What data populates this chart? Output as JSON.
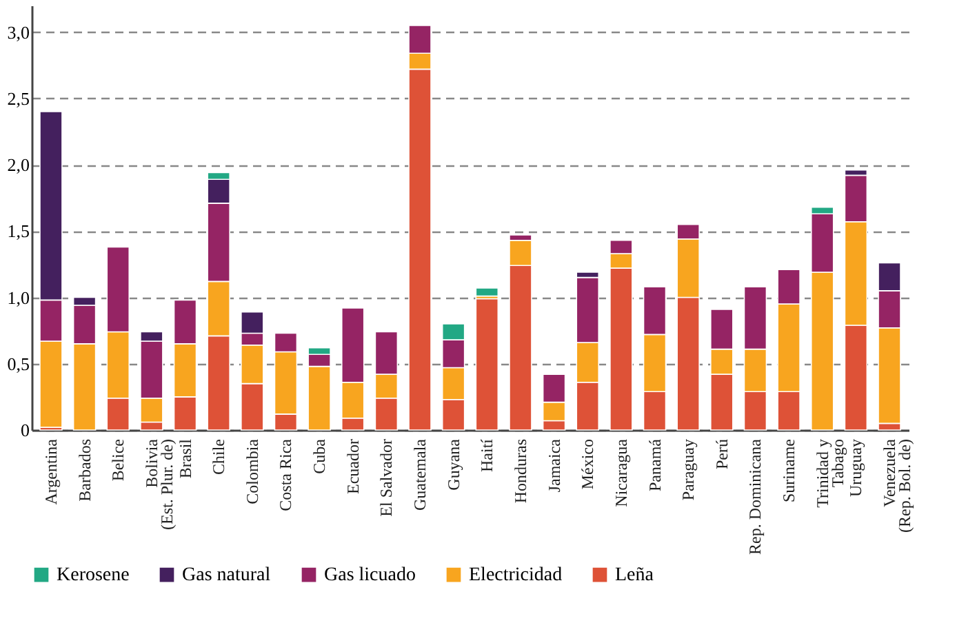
{
  "chart_data": {
    "type": "bar",
    "stacked": true,
    "categories": [
      "Argentina",
      "Barbados",
      "Belice",
      "Bolivia\n(Est. Plur. de)",
      "Brasil",
      "Chile",
      "Colombia",
      "Costa Rica",
      "Cuba",
      "Ecuador",
      "El Salvador",
      "Guatemala",
      "Guyana",
      "Haití",
      "Honduras",
      "Jamaica",
      "México",
      "Nicaragua",
      "Panamá",
      "Paraguay",
      "Perú",
      "Rep. Dominicana",
      "Suriname",
      "Trinidad y\nTabago",
      "Uruguay",
      "Venezuela\n(Rep. Bol. de)"
    ],
    "series": [
      {
        "name": "Leña",
        "color": "#de5237",
        "values": [
          0.02,
          null,
          0.24,
          0.06,
          0.25,
          0.71,
          0.35,
          0.12,
          null,
          0.09,
          0.24,
          2.72,
          0.23,
          0.99,
          1.24,
          0.07,
          0.36,
          1.22,
          0.29,
          1.0,
          0.42,
          0.29,
          0.29,
          null,
          0.79,
          0.05
        ]
      },
      {
        "name": "Electricidad",
        "color": "#f8a51f",
        "values": [
          0.65,
          0.65,
          0.5,
          0.18,
          0.4,
          0.41,
          0.29,
          0.47,
          0.48,
          0.27,
          0.18,
          0.12,
          0.24,
          0.02,
          0.19,
          0.14,
          0.3,
          0.11,
          0.43,
          0.44,
          0.19,
          0.32,
          0.66,
          1.19,
          0.78,
          0.72
        ]
      },
      {
        "name": "Gas licuado",
        "color": "#952464",
        "values": [
          0.31,
          0.29,
          0.64,
          0.43,
          0.33,
          0.59,
          0.09,
          0.14,
          0.09,
          0.56,
          0.32,
          0.21,
          0.21,
          null,
          0.04,
          0.21,
          0.49,
          0.1,
          0.36,
          0.11,
          0.3,
          0.47,
          0.26,
          0.44,
          0.35,
          0.28
        ]
      },
      {
        "name": "Gas natural",
        "color": "#44205e",
        "values": [
          1.42,
          0.06,
          null,
          0.07,
          null,
          0.18,
          0.16,
          null,
          null,
          null,
          null,
          null,
          null,
          null,
          null,
          null,
          0.04,
          null,
          null,
          null,
          null,
          null,
          null,
          null,
          0.04,
          0.21
        ]
      },
      {
        "name": "Kerosene",
        "color": "#22a884",
        "values": [
          null,
          null,
          null,
          null,
          null,
          0.05,
          null,
          null,
          0.05,
          null,
          null,
          null,
          0.12,
          0.06,
          null,
          null,
          null,
          null,
          null,
          null,
          null,
          null,
          null,
          0.05,
          null,
          null
        ]
      }
    ],
    "ylim": [
      0,
      3.2
    ],
    "yticks": [
      0,
      {
        "value": 0.5,
        "label": "0,5"
      },
      {
        "value": 1,
        "label": "1,0"
      },
      {
        "value": 1.5,
        "label": "1,5"
      },
      {
        "value": 2,
        "label": "2,0"
      },
      {
        "value": 2.5,
        "label": "2,5"
      },
      {
        "value": 3,
        "label": "3,0"
      }
    ],
    "grid": "y",
    "legend": "bottom"
  }
}
